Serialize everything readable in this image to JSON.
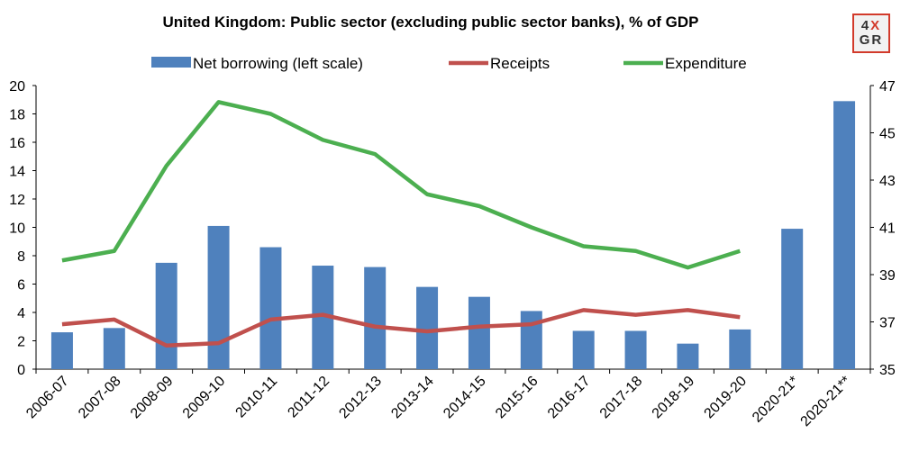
{
  "chart_data": {
    "type": "bar",
    "title": "United Kingdom: Public sector (excluding public sector banks), % of GDP",
    "categories": [
      "2006-07",
      "2007-08",
      "2008-09",
      "2009-10",
      "2010-11",
      "2011-12",
      "2012-13",
      "2013-14",
      "2014-15",
      "2015-16",
      "2016-17",
      "2017-18",
      "2018-19",
      "2019-20",
      "2020-21*",
      "2020-21**"
    ],
    "series": [
      {
        "name": "Net borrowing (left scale)",
        "type": "bar",
        "axis": "left",
        "color": "#4f81bd",
        "values": [
          2.6,
          2.9,
          7.5,
          10.1,
          8.6,
          7.3,
          7.2,
          5.8,
          5.1,
          4.1,
          2.7,
          2.7,
          1.8,
          2.8,
          9.9,
          18.9
        ]
      },
      {
        "name": "Receipts",
        "type": "line",
        "axis": "right",
        "color": "#c0504d",
        "values": [
          36.9,
          37.1,
          36.0,
          36.1,
          37.1,
          37.3,
          36.8,
          36.6,
          36.8,
          36.9,
          37.5,
          37.3,
          37.5,
          37.2,
          null,
          null
        ]
      },
      {
        "name": "Expenditure",
        "type": "line",
        "axis": "right",
        "color": "#4caf50",
        "values": [
          39.6,
          40.0,
          43.6,
          46.3,
          45.8,
          44.7,
          44.1,
          42.4,
          41.9,
          41.0,
          40.2,
          40.0,
          39.3,
          40.0,
          null,
          null
        ]
      }
    ],
    "ylim_left": [
      0,
      20
    ],
    "yticks_left": [
      "0",
      "2",
      "4",
      "6",
      "8",
      "10",
      "12",
      "14",
      "16",
      "18",
      "20"
    ],
    "ylim_right": [
      35,
      47
    ],
    "yticks_right": [
      "35",
      "37",
      "39",
      "41",
      "43",
      "45",
      "47"
    ],
    "grid": false,
    "legend_position": "top"
  },
  "logo": {
    "line1_a": "4",
    "line1_b": "X",
    "line2": "GR"
  }
}
